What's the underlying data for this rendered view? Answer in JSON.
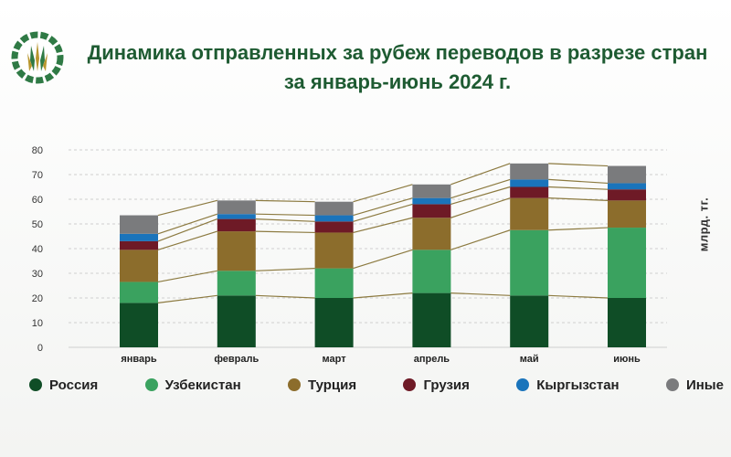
{
  "header": {
    "title_line1": "Динамика отправленных за рубеж переводов в разрезе стран",
    "title_line2": "за январь-июнь 2024 г."
  },
  "chart_data": {
    "type": "bar",
    "stacked": true,
    "categories": [
      "январь",
      "февраль",
      "март",
      "апрель",
      "май",
      "июнь"
    ],
    "ylabel": "млрд. тг.",
    "ylim": [
      0,
      80
    ],
    "yticks": [
      0,
      10,
      20,
      30,
      40,
      50,
      60,
      70,
      80
    ],
    "legend_position": "bottom",
    "connector_lines": true,
    "series": [
      {
        "name": "Россия",
        "color": "#0f4d26",
        "values": [
          18,
          21,
          20,
          22,
          21,
          20
        ]
      },
      {
        "name": "Узбекистан",
        "color": "#3aa25f",
        "values": [
          8.5,
          10,
          12,
          17.5,
          26.5,
          28.5
        ]
      },
      {
        "name": "Турция",
        "color": "#8c6d2c",
        "values": [
          13,
          16,
          14.5,
          13,
          13,
          11
        ]
      },
      {
        "name": "Грузия",
        "color": "#6e1a26",
        "values": [
          3.5,
          5,
          4.5,
          5.5,
          4.5,
          4.5
        ]
      },
      {
        "name": "Кыргызстан",
        "color": "#1a74bb",
        "values": [
          3,
          2,
          2.5,
          2.5,
          3,
          2.5
        ]
      },
      {
        "name": "Иные",
        "color": "#7a7b7d",
        "values": [
          7.5,
          5.5,
          5.5,
          5.5,
          6.5,
          7
        ]
      }
    ]
  }
}
